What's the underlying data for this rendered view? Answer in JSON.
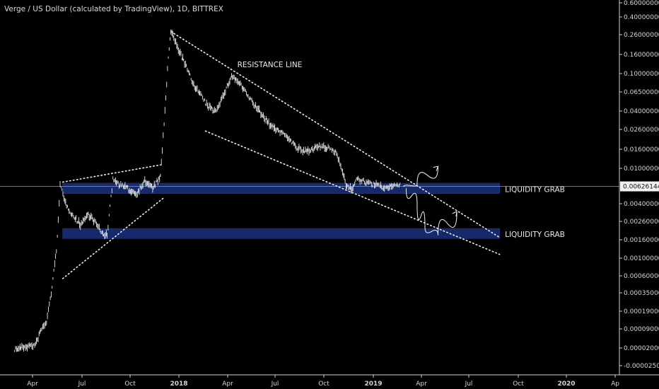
{
  "chart_data": {
    "type": "candlestick",
    "title": "Verge / US Dollar (calculated by TradingView), 1D, BITTREX",
    "y_ticks": [
      "0.60000000",
      "0.40000000",
      "0.26000000",
      "0.16000000",
      "0.10000000",
      "0.06500000",
      "0.04000000",
      "0.02600000",
      "0.01600000",
      "0.01000000",
      "0.00400000",
      "0.00260000",
      "0.00160000",
      "0.00100000",
      "0.00060000",
      "0.00035000",
      "0.00019000",
      "0.00009000",
      "0.00002000",
      "-0.00002500"
    ],
    "x_ticks": [
      {
        "label": "Apr",
        "bold": false
      },
      {
        "label": "Jul",
        "bold": false
      },
      {
        "label": "Oct",
        "bold": false
      },
      {
        "label": "2018",
        "bold": true
      },
      {
        "label": "Apr",
        "bold": false
      },
      {
        "label": "Jul",
        "bold": false
      },
      {
        "label": "Oct",
        "bold": false
      },
      {
        "label": "2019",
        "bold": true
      },
      {
        "label": "Apr",
        "bold": false
      },
      {
        "label": "Jul",
        "bold": false
      },
      {
        "label": "Oct",
        "bold": false
      },
      {
        "label": "2020",
        "bold": true
      },
      {
        "label": "Ap",
        "bold": false
      }
    ],
    "last_price": "0.00626144",
    "price_path": [
      [
        "2017-03-01",
        1.8e-05
      ],
      [
        "2017-03-20",
        2.2e-05
      ],
      [
        "2017-04-10",
        2.5e-05
      ],
      [
        "2017-04-20",
        8e-05
      ],
      [
        "2017-05-01",
        0.00012
      ],
      [
        "2017-05-10",
        0.00035
      ],
      [
        "2017-05-20",
        0.0012
      ],
      [
        "2017-05-27",
        0.0065
      ],
      [
        "2017-06-05",
        0.0042
      ],
      [
        "2017-06-20",
        0.003
      ],
      [
        "2017-07-05",
        0.0024
      ],
      [
        "2017-07-20",
        0.0031
      ],
      [
        "2017-08-01",
        0.0026
      ],
      [
        "2017-08-15",
        0.0019
      ],
      [
        "2017-08-25",
        0.0018
      ],
      [
        "2017-09-05",
        0.0075
      ],
      [
        "2017-09-20",
        0.0065
      ],
      [
        "2017-10-05",
        0.0058
      ],
      [
        "2017-10-20",
        0.0052
      ],
      [
        "2017-11-05",
        0.0072
      ],
      [
        "2017-11-20",
        0.006
      ],
      [
        "2017-12-05",
        0.008
      ],
      [
        "2017-12-12",
        0.03
      ],
      [
        "2017-12-20",
        0.15
      ],
      [
        "2017-12-25",
        0.28
      ],
      [
        "2018-01-05",
        0.2
      ],
      [
        "2018-01-20",
        0.13
      ],
      [
        "2018-02-05",
        0.08
      ],
      [
        "2018-02-20",
        0.06
      ],
      [
        "2018-03-05",
        0.045
      ],
      [
        "2018-03-20",
        0.04
      ],
      [
        "2018-04-05",
        0.06
      ],
      [
        "2018-04-20",
        0.095
      ],
      [
        "2018-05-05",
        0.08
      ],
      [
        "2018-05-20",
        0.06
      ],
      [
        "2018-06-05",
        0.045
      ],
      [
        "2018-06-20",
        0.035
      ],
      [
        "2018-07-05",
        0.028
      ],
      [
        "2018-07-20",
        0.025
      ],
      [
        "2018-08-05",
        0.022
      ],
      [
        "2018-08-20",
        0.017
      ],
      [
        "2018-09-05",
        0.015
      ],
      [
        "2018-09-20",
        0.016
      ],
      [
        "2018-10-05",
        0.017
      ],
      [
        "2018-10-20",
        0.0165
      ],
      [
        "2018-11-05",
        0.015
      ],
      [
        "2018-11-15",
        0.011
      ],
      [
        "2018-11-25",
        0.0065
      ],
      [
        "2018-12-05",
        0.0058
      ],
      [
        "2018-12-15",
        0.0075
      ],
      [
        "2019-01-01",
        0.007
      ],
      [
        "2019-01-20",
        0.0065
      ],
      [
        "2019-02-10",
        0.006
      ],
      [
        "2019-02-25",
        0.0066
      ],
      [
        "2019-03-10",
        0.00626144
      ]
    ],
    "dotted_lines": [
      {
        "name": "resistance-line",
        "p1": [
          "2017-12-25",
          0.28
        ],
        "p2": [
          "2019-09-15",
          0.0017
        ]
      },
      {
        "name": "support-line",
        "p1": [
          "2018-03-01",
          0.025
        ],
        "p2": [
          "2019-09-15",
          0.0011
        ]
      },
      {
        "name": "lower-wedge-line",
        "p1": [
          "2017-06-01",
          0.00055
        ],
        "p2": [
          "2017-12-10",
          0.0046
        ]
      },
      {
        "name": "upper-wedge-line",
        "p1": [
          "2017-06-01",
          0.007
        ],
        "p2": [
          "2017-12-10",
          0.011
        ]
      }
    ],
    "zones": [
      {
        "name": "liquidity-zone-upper",
        "x1": "2017-06-01",
        "x2": "2019-09-15",
        "y_top": 0.0068,
        "y_bottom": 0.0052
      },
      {
        "name": "liquidity-zone-lower",
        "x1": "2017-06-01",
        "x2": "2019-09-15",
        "y_top": 0.00215,
        "y_bottom": 0.00165
      }
    ],
    "annotations": [
      {
        "name": "resistance-label",
        "text": "RESISTANCE LINE",
        "x": "2018-05-01",
        "y": 0.125
      },
      {
        "name": "liquidity-grab-upper",
        "text": "LIQUIDITY GRAB",
        "x": "2019-09-25",
        "y": 0.0058
      },
      {
        "name": "liquidity-grab-lower",
        "text": "LIQUIDITY GRAB",
        "x": "2019-09-25",
        "y": 0.00185
      }
    ],
    "arrows": [
      {
        "name": "bullish-arrow-short",
        "path": [
          [
            "2019-03-15",
            0.0062
          ],
          [
            "2019-04-10",
            0.0066
          ],
          [
            "2019-05-20",
            0.0105
          ]
        ]
      },
      {
        "name": "bullish-arrow-after-dip",
        "path": [
          [
            "2019-03-20",
            0.006
          ],
          [
            "2019-04-10",
            0.004
          ],
          [
            "2019-04-25",
            0.0022
          ],
          [
            "2019-05-20",
            0.0018
          ],
          [
            "2019-06-25",
            0.0033
          ]
        ]
      }
    ]
  }
}
